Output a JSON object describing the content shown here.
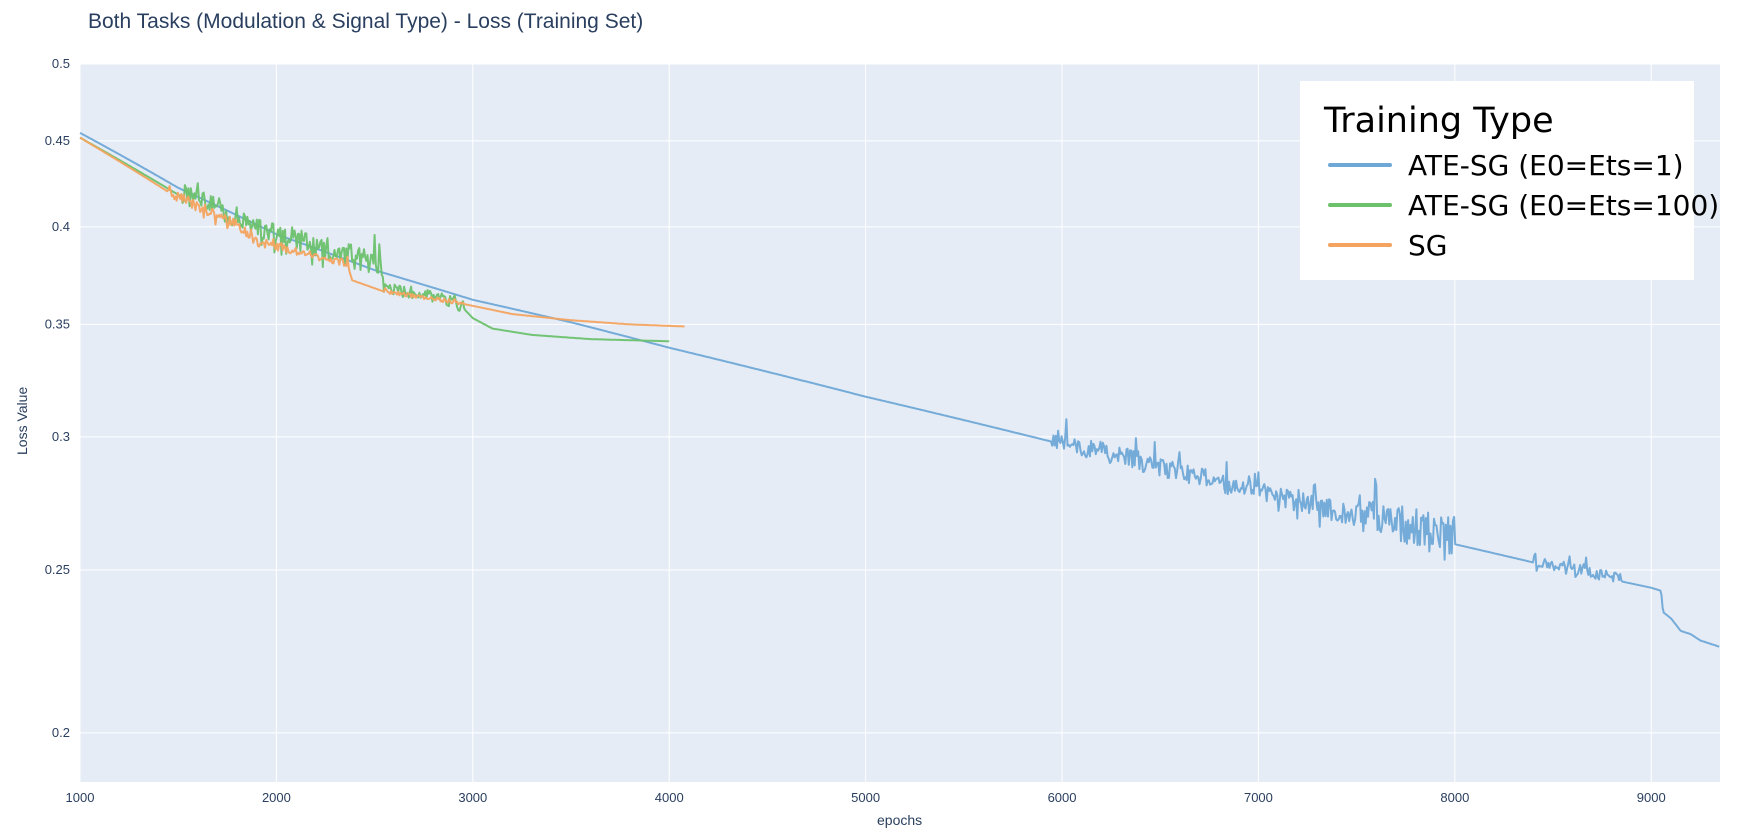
{
  "chart_data": {
    "type": "line",
    "title": "Both Tasks (Modulation & Signal Type) - Loss (Training Set)",
    "xlabel": "epochs",
    "ylabel": "Loss Value",
    "xlim": [
      1000,
      9350
    ],
    "ylim": [
      0.187,
      0.5
    ],
    "yscale": "log",
    "grid": true,
    "background": "#e5ecf6",
    "xticks": [
      1000,
      2000,
      3000,
      4000,
      5000,
      6000,
      7000,
      8000,
      9000
    ],
    "yticks": [
      0.2,
      0.25,
      0.3,
      0.35,
      0.4,
      0.45,
      0.5
    ],
    "legend": {
      "title": "Training Type",
      "placement": "top-right",
      "labels": [
        "ATE-SG (E0=Ets=1)",
        "ATE-SG (E0=Ets=100)",
        "SG"
      ]
    },
    "series": [
      {
        "name": "ATE-SG (E0=Ets=1)",
        "color": "#6fa8d6",
        "x": [
          1000,
          1500,
          2000,
          2500,
          3000,
          3500,
          4000,
          4500,
          5000,
          5500,
          6000,
          6500,
          7000,
          7500,
          8000,
          8500,
          9000,
          9050,
          9060,
          9100,
          9150,
          9200,
          9250,
          9350
        ],
        "y": [
          0.455,
          0.422,
          0.396,
          0.377,
          0.362,
          0.351,
          0.339,
          0.328,
          0.317,
          0.307,
          0.297,
          0.287,
          0.277,
          0.268,
          0.259,
          0.251,
          0.244,
          0.243,
          0.236,
          0.234,
          0.23,
          0.229,
          0.227,
          0.225
        ],
        "noise": [
          [
            5950,
            8000,
            0.004
          ],
          [
            7500,
            8000,
            0.006
          ],
          [
            8400,
            8850,
            0.002
          ]
        ]
      },
      {
        "name": "ATE-SG (E0=Ets=100)",
        "color": "#6cc16b",
        "x": [
          1000,
          1500,
          1900,
          2200,
          2540,
          2550,
          2800,
          2950,
          3000,
          3100,
          3300,
          3600,
          4000
        ],
        "y": [
          0.452,
          0.418,
          0.398,
          0.388,
          0.378,
          0.367,
          0.363,
          0.358,
          0.353,
          0.348,
          0.345,
          0.343,
          0.342
        ],
        "noise": [
          [
            1500,
            2550,
            0.006
          ],
          [
            2550,
            2960,
            0.003
          ]
        ]
      },
      {
        "name": "SG",
        "color": "#f4a460",
        "x": [
          1000,
          1500,
          1800,
          1900,
          2360,
          2380,
          2550,
          2950,
          3200,
          3500,
          3800,
          4080
        ],
        "y": [
          0.452,
          0.416,
          0.4,
          0.391,
          0.38,
          0.372,
          0.366,
          0.36,
          0.355,
          0.352,
          0.35,
          0.349
        ],
        "noise": [
          [
            1450,
            1900,
            0.003
          ],
          [
            1900,
            2380,
            0.002
          ],
          [
            2550,
            2950,
            0.001
          ]
        ]
      }
    ]
  }
}
